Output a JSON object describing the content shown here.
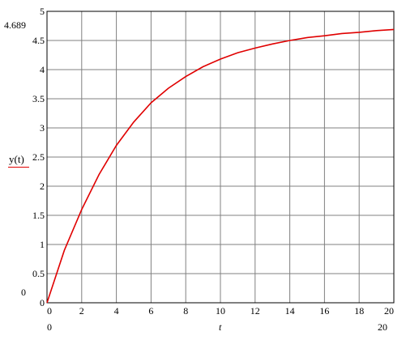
{
  "chart_data": {
    "type": "line",
    "title": "",
    "xlabel": "t",
    "ylabel": "y(t)",
    "xlim": [
      0,
      20
    ],
    "ylim": [
      0,
      5
    ],
    "x_ticks": [
      0,
      2,
      4,
      6,
      8,
      10,
      12,
      14,
      16,
      18,
      20
    ],
    "y_ticks": [
      0,
      0.5,
      1,
      1.5,
      2,
      2.5,
      3,
      3.5,
      4,
      4.5,
      5
    ],
    "x_range_labels": {
      "min": "0",
      "max": "20"
    },
    "y_range_labels": {
      "min": "0",
      "max": "4.689"
    },
    "grid": true,
    "series": [
      {
        "name": "y(t)",
        "color": "#e00000",
        "x": [
          0,
          1,
          2,
          3,
          4,
          5,
          6,
          7,
          8,
          9,
          10,
          11,
          12,
          13,
          14,
          15,
          16,
          17,
          18,
          19,
          20
        ],
        "y": [
          0,
          0.9,
          1.6,
          2.2,
          2.7,
          3.1,
          3.43,
          3.68,
          3.88,
          4.05,
          4.18,
          4.29,
          4.37,
          4.44,
          4.5,
          4.55,
          4.58,
          4.62,
          4.64,
          4.67,
          4.689
        ]
      }
    ]
  }
}
